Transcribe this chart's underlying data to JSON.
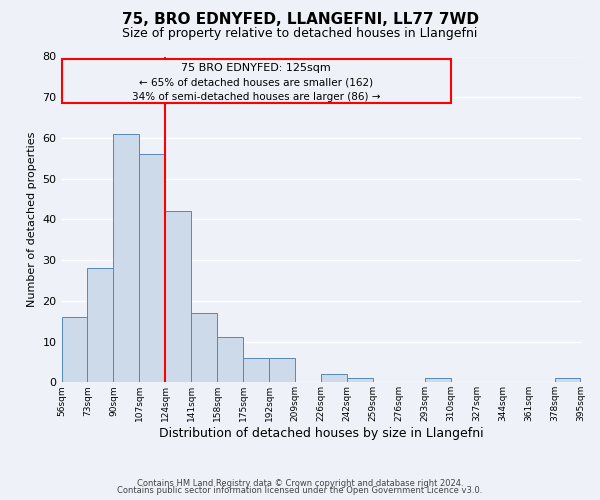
{
  "title": "75, BRO EDNYFED, LLANGEFNI, LL77 7WD",
  "subtitle": "Size of property relative to detached houses in Llangefni",
  "xlabel": "Distribution of detached houses by size in Llangefni",
  "ylabel": "Number of detached properties",
  "bin_edges": [
    56,
    73,
    90,
    107,
    124,
    141,
    158,
    175,
    192,
    209,
    226,
    243,
    260,
    277,
    294,
    311,
    328,
    345,
    362,
    379,
    396
  ],
  "bin_labels": [
    "56sqm",
    "73sqm",
    "90sqm",
    "107sqm",
    "124sqm",
    "141sqm",
    "158sqm",
    "175sqm",
    "192sqm",
    "209sqm",
    "226sqm",
    "242sqm",
    "259sqm",
    "276sqm",
    "293sqm",
    "310sqm",
    "327sqm",
    "344sqm",
    "361sqm",
    "378sqm",
    "395sqm"
  ],
  "counts": [
    16,
    28,
    61,
    56,
    42,
    17,
    11,
    6,
    6,
    0,
    2,
    1,
    0,
    0,
    1,
    0,
    0,
    0,
    0,
    1
  ],
  "bar_color": "#ccdaea",
  "bar_edge_color": "#5588bb",
  "vline_x": 124,
  "vline_color": "red",
  "ann_line1": "75 BRO EDNYFED: 125sqm",
  "ann_line2": "← 65% of detached houses are smaller (162)",
  "ann_line3": "34% of semi-detached houses are larger (86) →",
  "ylim": [
    0,
    80
  ],
  "yticks": [
    0,
    10,
    20,
    30,
    40,
    50,
    60,
    70,
    80
  ],
  "bg_color": "#eef2f8",
  "grid_color": "white",
  "footer_line1": "Contains HM Land Registry data © Crown copyright and database right 2024.",
  "footer_line2": "Contains public sector information licensed under the Open Government Licence v3.0."
}
